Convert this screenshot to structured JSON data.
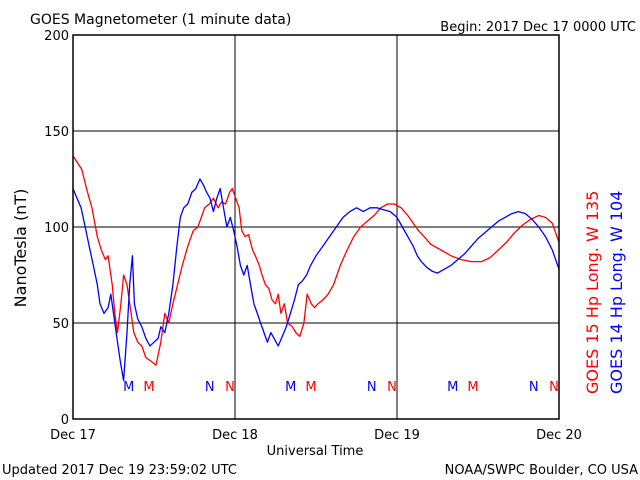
{
  "chart_data": {
    "type": "line",
    "title": "GOES Magnetometer (1 minute data)",
    "begin_label": "Begin:  2017 Dec 17 0000 UTC",
    "xlabel": "Universal Time",
    "ylabel": "NanoTesla (nT)",
    "xlim": [
      0,
      72
    ],
    "ylim": [
      0,
      200
    ],
    "x_unit": "hours since 2017 Dec 17 0000 UTC",
    "grid": true,
    "y_ticks": [
      {
        "value": 0,
        "label": "0"
      },
      {
        "value": 50,
        "label": "50"
      },
      {
        "value": 100,
        "label": "100"
      },
      {
        "value": 150,
        "label": "150"
      },
      {
        "value": 200,
        "label": "200"
      }
    ],
    "x_ticks": [
      {
        "value": 0,
        "label": "Dec 17"
      },
      {
        "value": 24,
        "label": "Dec 18"
      },
      {
        "value": 48,
        "label": "Dec 19"
      },
      {
        "value": 72,
        "label": "Dec 20"
      }
    ],
    "markers": [
      {
        "x": 9,
        "label": "M",
        "series": "GOES 14"
      },
      {
        "x": 12,
        "label": "M",
        "series": "GOES 15"
      },
      {
        "x": 21,
        "label": "N",
        "series": "GOES 14"
      },
      {
        "x": 24,
        "label": "N",
        "series": "GOES 15"
      },
      {
        "x": 33,
        "label": "M",
        "series": "GOES 14"
      },
      {
        "x": 36,
        "label": "M",
        "series": "GOES 15"
      },
      {
        "x": 45,
        "label": "N",
        "series": "GOES 14"
      },
      {
        "x": 48,
        "label": "N",
        "series": "GOES 15"
      },
      {
        "x": 57,
        "label": "M",
        "series": "GOES 14"
      },
      {
        "x": 60,
        "label": "M",
        "series": "GOES 15"
      },
      {
        "x": 69,
        "label": "N",
        "series": "GOES 14"
      },
      {
        "x": 72,
        "label": "N",
        "series": "GOES 15"
      }
    ],
    "series": [
      {
        "name": "GOES 15 Hp  Long. W 135",
        "color": "#ff0000",
        "points": [
          [
            0,
            137
          ],
          [
            1.3,
            130
          ],
          [
            2,
            120
          ],
          [
            2.8,
            110
          ],
          [
            3.6,
            95
          ],
          [
            4.2,
            88
          ],
          [
            4.8,
            83
          ],
          [
            5.2,
            85
          ],
          [
            5.8,
            70
          ],
          [
            6.2,
            55
          ],
          [
            6.6,
            45
          ],
          [
            7.1,
            60
          ],
          [
            7.5,
            75
          ],
          [
            8,
            70
          ],
          [
            8.6,
            55
          ],
          [
            9,
            45
          ],
          [
            9.6,
            40
          ],
          [
            10.2,
            38
          ],
          [
            10.8,
            32
          ],
          [
            11.6,
            30
          ],
          [
            12.3,
            28
          ],
          [
            13,
            40
          ],
          [
            13.6,
            55
          ],
          [
            14.2,
            50
          ],
          [
            14.8,
            60
          ],
          [
            15.5,
            70
          ],
          [
            16.2,
            80
          ],
          [
            17,
            90
          ],
          [
            17.8,
            98
          ],
          [
            18.5,
            100
          ],
          [
            19,
            105
          ],
          [
            19.5,
            110
          ],
          [
            20.2,
            112
          ],
          [
            20.8,
            115
          ],
          [
            21.5,
            110
          ],
          [
            22,
            113
          ],
          [
            22.6,
            112
          ],
          [
            23.2,
            118
          ],
          [
            23.6,
            120
          ],
          [
            24.1,
            115
          ],
          [
            24.6,
            110
          ],
          [
            25,
            98
          ],
          [
            25.5,
            95
          ],
          [
            26,
            96
          ],
          [
            26.6,
            88
          ],
          [
            27,
            85
          ],
          [
            27.6,
            80
          ],
          [
            28,
            75
          ],
          [
            28.5,
            70
          ],
          [
            29,
            68
          ],
          [
            29.5,
            62
          ],
          [
            30,
            60
          ],
          [
            30.4,
            65
          ],
          [
            30.8,
            55
          ],
          [
            31.3,
            60
          ],
          [
            31.8,
            50
          ],
          [
            32.5,
            48
          ],
          [
            33,
            45
          ],
          [
            33.6,
            43
          ],
          [
            34.2,
            50
          ],
          [
            34.7,
            65
          ],
          [
            35.3,
            60
          ],
          [
            35.8,
            58
          ],
          [
            36.3,
            60
          ],
          [
            37,
            62
          ],
          [
            37.8,
            65
          ],
          [
            38.6,
            70
          ],
          [
            39.6,
            80
          ],
          [
            40.6,
            88
          ],
          [
            41.6,
            95
          ],
          [
            42.6,
            100
          ],
          [
            43.6,
            103
          ],
          [
            44.6,
            106
          ],
          [
            45.6,
            110
          ],
          [
            46.6,
            112
          ],
          [
            47.6,
            112
          ],
          [
            48.6,
            110
          ],
          [
            49.6,
            106
          ],
          [
            50.4,
            102
          ],
          [
            51.2,
            98
          ],
          [
            52,
            95
          ],
          [
            53,
            91
          ],
          [
            54.5,
            88
          ],
          [
            56,
            85
          ],
          [
            57.5,
            83
          ],
          [
            59,
            82
          ],
          [
            60.5,
            82
          ],
          [
            61.8,
            84
          ],
          [
            63,
            88
          ],
          [
            64.2,
            92
          ],
          [
            65.4,
            97
          ],
          [
            66.6,
            101
          ],
          [
            67.8,
            104
          ],
          [
            69,
            106
          ],
          [
            70,
            105
          ],
          [
            71,
            102
          ],
          [
            72,
            92
          ]
        ]
      },
      {
        "name": "GOES 14 Hp  Long. W 104",
        "color": "#0000ff",
        "points": [
          [
            0,
            120
          ],
          [
            0.6,
            115
          ],
          [
            1.2,
            110
          ],
          [
            1.8,
            100
          ],
          [
            2.4,
            90
          ],
          [
            3,
            80
          ],
          [
            3.6,
            70
          ],
          [
            4,
            60
          ],
          [
            4.6,
            55
          ],
          [
            5.2,
            58
          ],
          [
            5.6,
            65
          ],
          [
            6,
            55
          ],
          [
            6.6,
            40
          ],
          [
            7,
            30
          ],
          [
            7.5,
            20
          ],
          [
            8,
            45
          ],
          [
            8.4,
            70
          ],
          [
            8.8,
            85
          ],
          [
            9.1,
            60
          ],
          [
            9.6,
            52
          ],
          [
            10.2,
            48
          ],
          [
            10.8,
            42
          ],
          [
            11.4,
            38
          ],
          [
            12,
            40
          ],
          [
            12.6,
            42
          ],
          [
            13,
            48
          ],
          [
            13.6,
            45
          ],
          [
            14.2,
            55
          ],
          [
            14.8,
            70
          ],
          [
            15.4,
            90
          ],
          [
            15.9,
            105
          ],
          [
            16.4,
            110
          ],
          [
            17,
            112
          ],
          [
            17.6,
            118
          ],
          [
            18.2,
            120
          ],
          [
            18.8,
            125
          ],
          [
            19.3,
            122
          ],
          [
            19.8,
            118
          ],
          [
            20.3,
            115
          ],
          [
            20.8,
            108
          ],
          [
            21.3,
            115
          ],
          [
            21.8,
            120
          ],
          [
            22.3,
            110
          ],
          [
            22.8,
            100
          ],
          [
            23.3,
            105
          ],
          [
            23.8,
            98
          ],
          [
            24.3,
            90
          ],
          [
            24.8,
            80
          ],
          [
            25.3,
            75
          ],
          [
            25.8,
            80
          ],
          [
            26.3,
            70
          ],
          [
            26.8,
            60
          ],
          [
            27.3,
            55
          ],
          [
            27.8,
            50
          ],
          [
            28.3,
            45
          ],
          [
            28.8,
            40
          ],
          [
            29.3,
            45
          ],
          [
            29.8,
            42
          ],
          [
            30.4,
            38
          ],
          [
            31,
            43
          ],
          [
            31.6,
            48
          ],
          [
            32.2,
            55
          ],
          [
            32.8,
            62
          ],
          [
            33.4,
            70
          ],
          [
            34,
            72
          ],
          [
            34.6,
            75
          ],
          [
            35.2,
            80
          ],
          [
            36,
            85
          ],
          [
            37,
            90
          ],
          [
            38,
            95
          ],
          [
            39,
            100
          ],
          [
            40,
            105
          ],
          [
            41,
            108
          ],
          [
            42,
            110
          ],
          [
            43,
            108
          ],
          [
            44,
            110
          ],
          [
            45,
            110
          ],
          [
            46,
            109
          ],
          [
            47,
            108
          ],
          [
            48,
            105
          ],
          [
            48.8,
            100
          ],
          [
            49.6,
            95
          ],
          [
            50.4,
            90
          ],
          [
            51,
            85
          ],
          [
            51.6,
            82
          ],
          [
            52.4,
            79
          ],
          [
            53.2,
            77
          ],
          [
            54,
            76
          ],
          [
            55,
            78
          ],
          [
            56,
            80
          ],
          [
            57,
            83
          ],
          [
            58,
            86
          ],
          [
            59,
            90
          ],
          [
            60,
            94
          ],
          [
            61,
            97
          ],
          [
            62,
            100
          ],
          [
            63,
            103
          ],
          [
            64,
            105
          ],
          [
            65,
            107
          ],
          [
            66,
            108
          ],
          [
            67,
            107
          ],
          [
            68,
            104
          ],
          [
            69,
            100
          ],
          [
            70,
            95
          ],
          [
            71,
            88
          ],
          [
            72,
            78
          ]
        ]
      }
    ]
  },
  "footer": {
    "updated": "Updated 2017 Dec 19 23:59:02 UTC",
    "credit": "NOAA/SWPC Boulder, CO USA"
  }
}
